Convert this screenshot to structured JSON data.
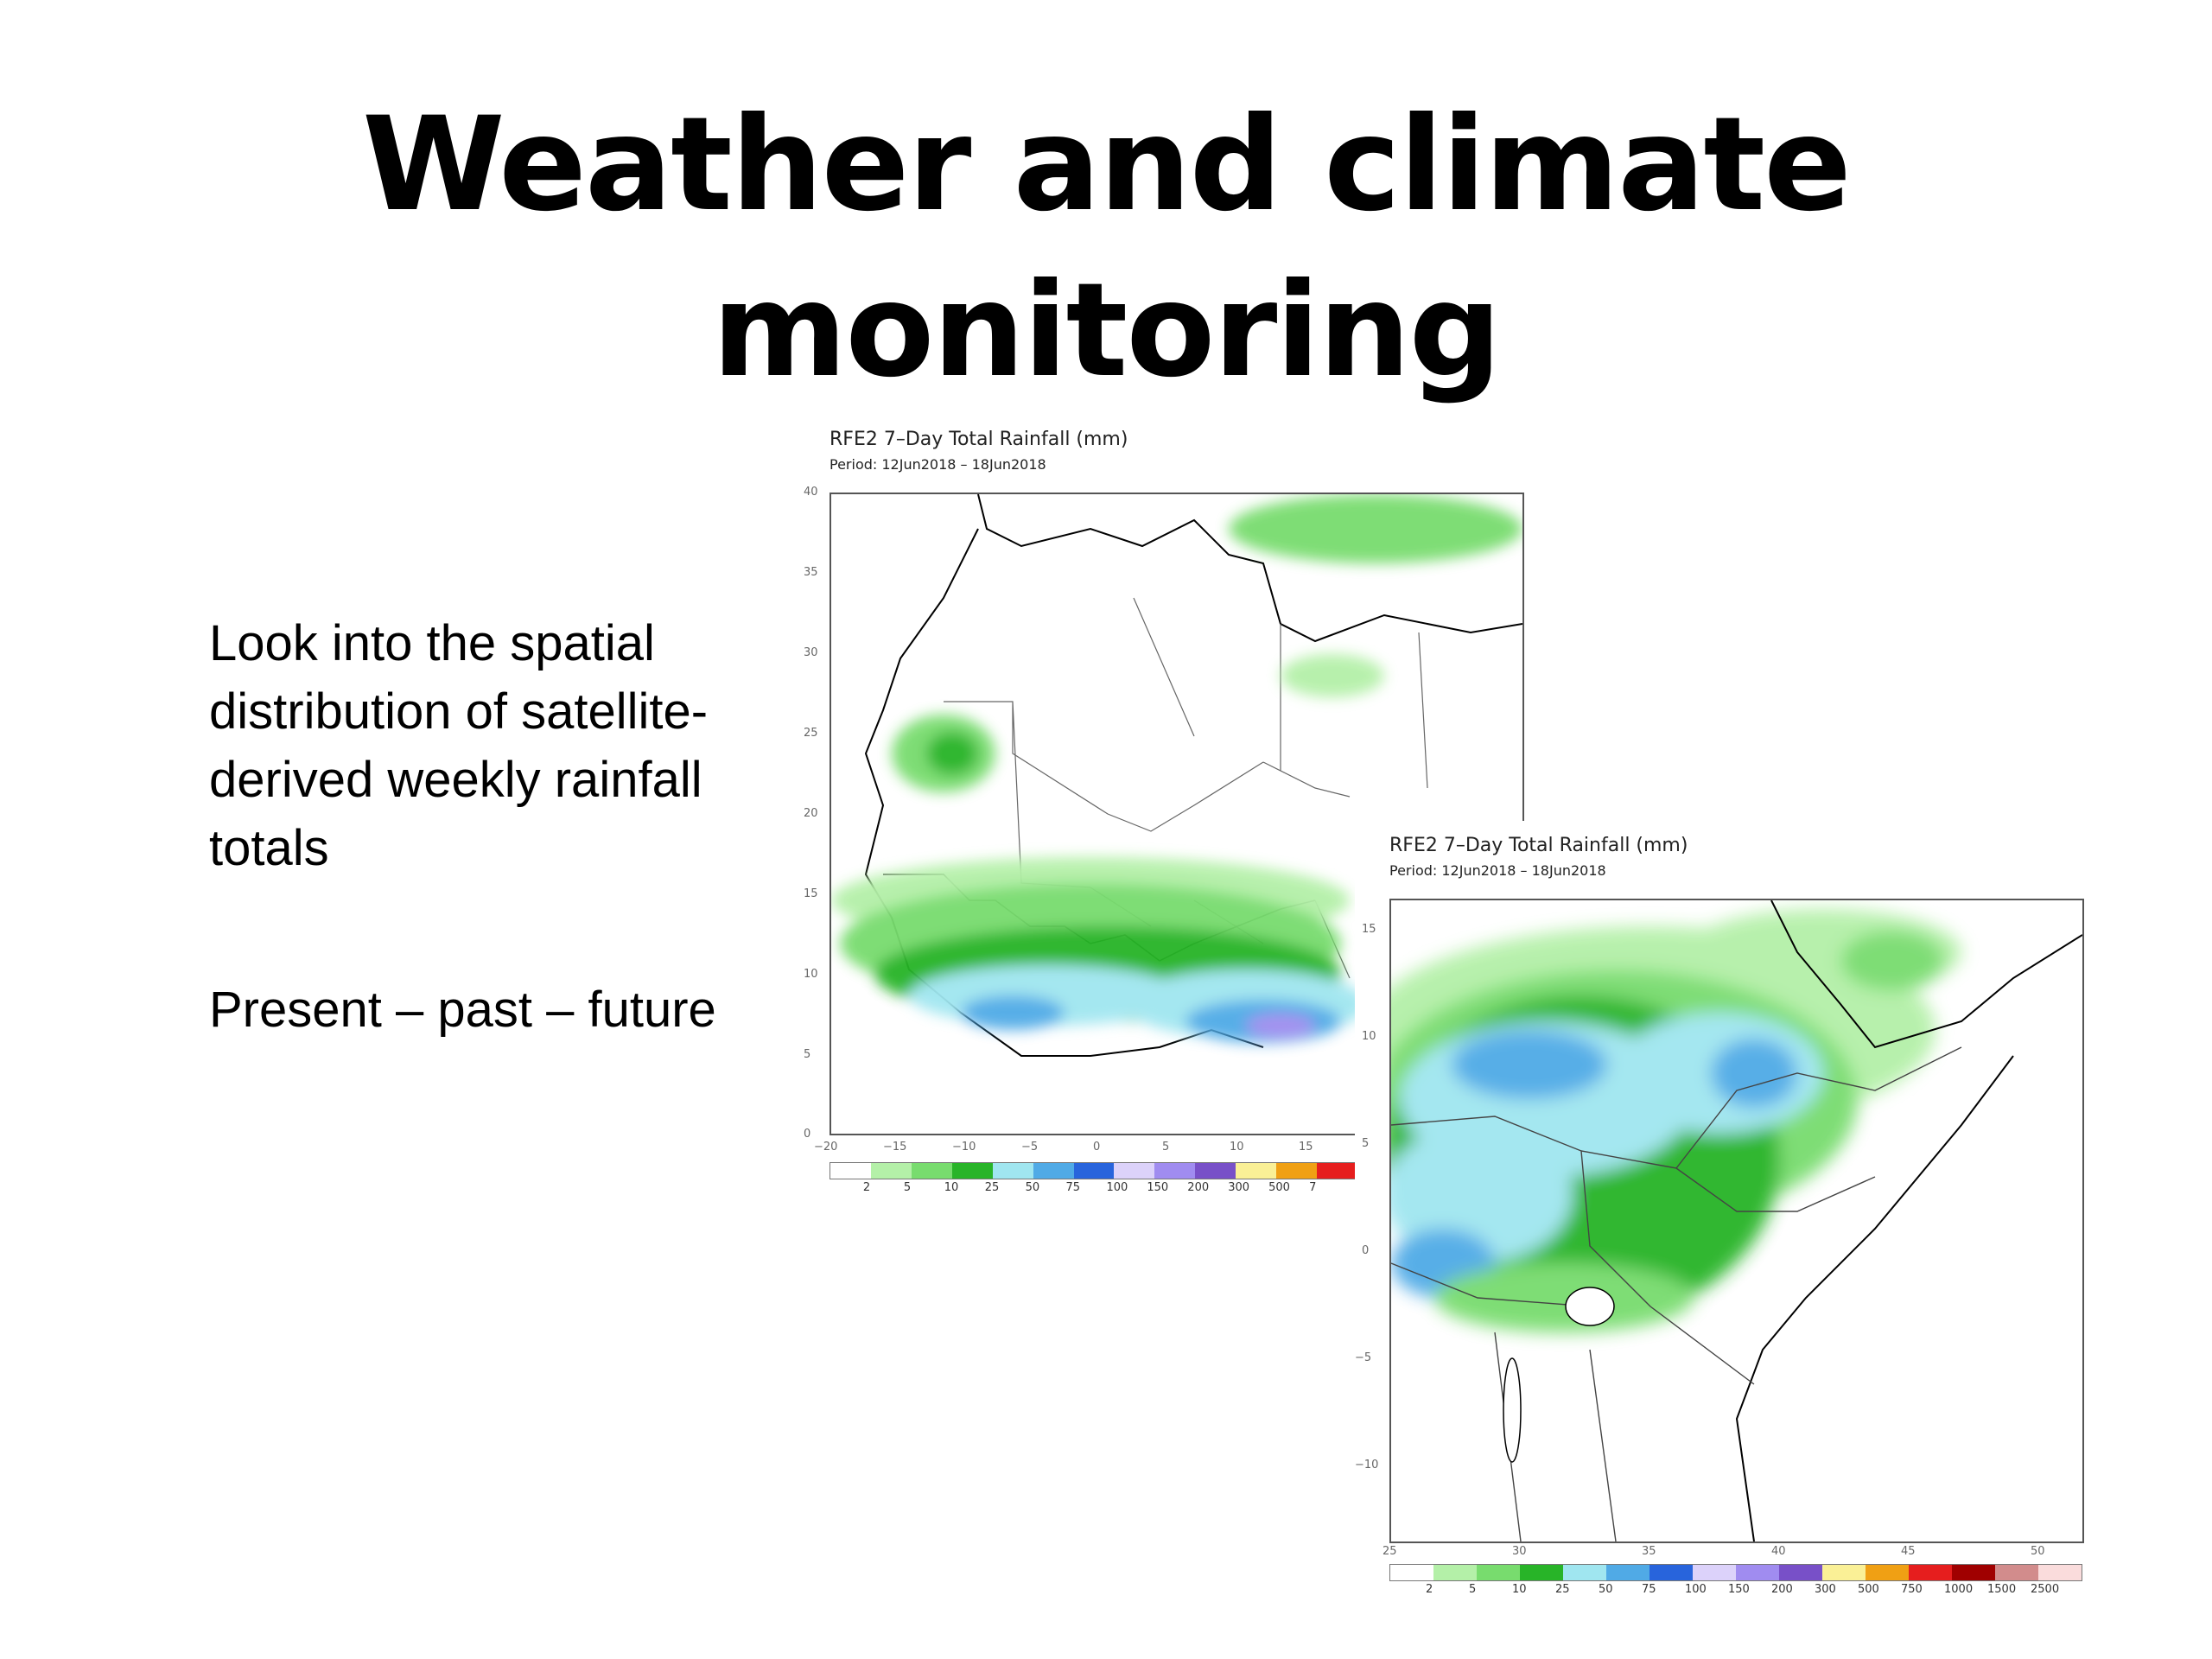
{
  "slide": {
    "title_line1": "Weather and climate",
    "title_line2": "monitoring",
    "paragraph1": "Look into the spatial distribution of satellite-derived weekly rainfall totals",
    "paragraph2": "Present – past – future"
  },
  "maps": [
    {
      "title": "RFE2  7–Day  Total  Rainfall  (mm)",
      "period": "Period:  12Jun2018  –  18Jun2018",
      "region": "West Africa",
      "lat_ticks": [
        "40",
        "35",
        "30",
        "25",
        "20",
        "15",
        "10",
        "5",
        "0"
      ],
      "lon_ticks": [
        "−20",
        "−15",
        "−10",
        "−5",
        "0",
        "5",
        "10",
        "15"
      ],
      "colorbar_labels": [
        "2",
        "5",
        "10",
        "25",
        "50",
        "75",
        "100",
        "150",
        "200",
        "300",
        "500",
        "7"
      ]
    },
    {
      "title": "RFE2  7–Day  Total  Rainfall  (mm)",
      "period": "Period:  12Jun2018  –  18Jun2018",
      "region": "East Africa",
      "lat_ticks": [
        "15",
        "10",
        "5",
        "0",
        "−5",
        "−10"
      ],
      "lon_ticks": [
        "25",
        "30",
        "35",
        "40",
        "45",
        "50"
      ],
      "colorbar_labels": [
        "2",
        "5",
        "10",
        "25",
        "50",
        "75",
        "100",
        "150",
        "200",
        "300",
        "500",
        "750",
        "1000",
        "1500",
        "2500"
      ]
    }
  ],
  "colors": {
    "rain_scale": [
      "#ffffff",
      "#b4f0a8",
      "#78dc6e",
      "#28b428",
      "#a0e6f0",
      "#50aae6",
      "#2864dc",
      "#dcd2fa",
      "#a08cf0",
      "#7850c8",
      "#faf096",
      "#f0a014",
      "#e61e1e",
      "#a00000",
      "#d28c8c",
      "#fadcdc"
    ],
    "land_border": "#555555",
    "coast": "#000000"
  }
}
